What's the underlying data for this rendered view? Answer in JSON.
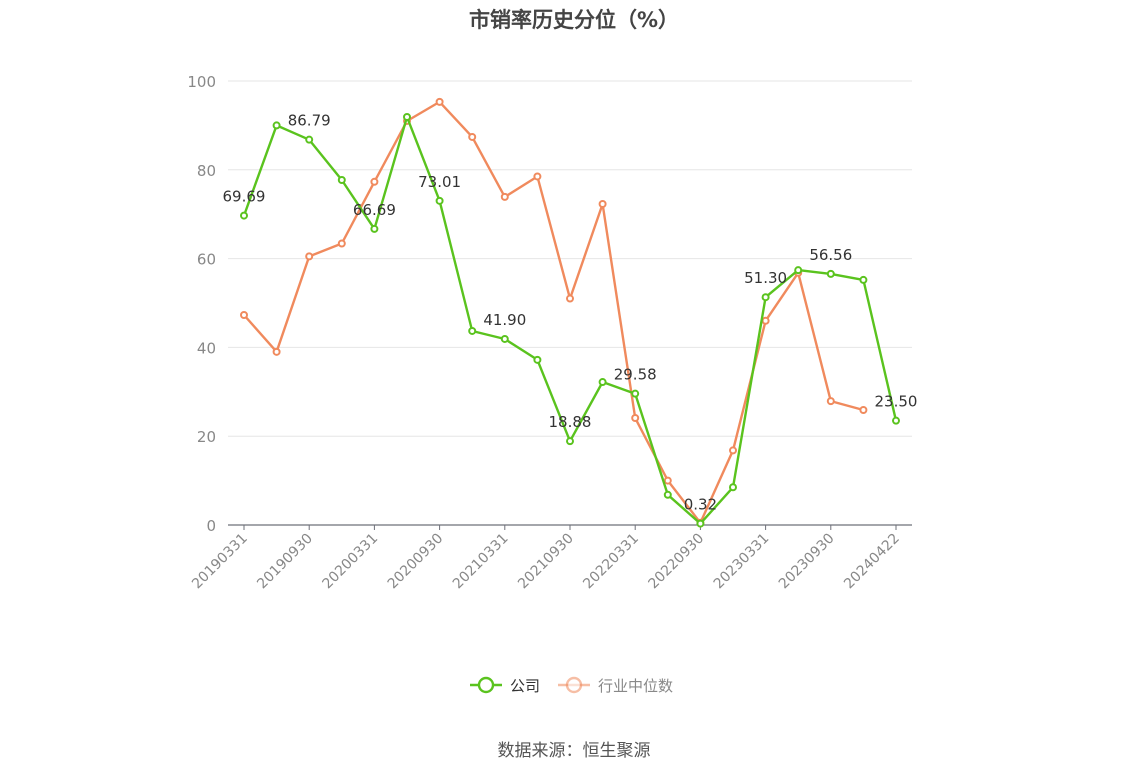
{
  "chart_data": {
    "type": "line",
    "title": "市销率历史分位（%）",
    "ylim": [
      0,
      100
    ],
    "yticks": [
      0,
      20,
      40,
      60,
      80,
      100
    ],
    "x": [
      "20190331",
      "20190630",
      "20190930",
      "20191231",
      "20200331",
      "20200630",
      "20200930",
      "20201231",
      "20210331",
      "20210630",
      "20210930",
      "20211231",
      "20220331",
      "20220630",
      "20220930",
      "20221231",
      "20230331",
      "20230630",
      "20230930",
      "20231231",
      "20240422"
    ],
    "xtick_labels": [
      "20190331",
      "20190930",
      "20200331",
      "20200930",
      "20210331",
      "20210930",
      "20220331",
      "20220930",
      "20230331",
      "20230930",
      "20240422"
    ],
    "grid": true,
    "legend_position": "bottom-center",
    "series": [
      {
        "name": "公司",
        "color": "#5ac31e",
        "values": [
          69.69,
          90.0,
          86.79,
          77.7,
          66.69,
          91.9,
          73.01,
          43.7,
          41.9,
          37.2,
          18.88,
          32.2,
          29.58,
          6.8,
          0.32,
          8.5,
          51.3,
          57.4,
          56.56,
          55.2,
          23.5
        ],
        "labels": [
          "69.69",
          null,
          "86.79",
          null,
          "66.69",
          null,
          "73.01",
          null,
          "41.90",
          null,
          "18.88",
          null,
          "29.58",
          null,
          "0.32",
          null,
          "51.30",
          null,
          "56.56",
          null,
          "23.50"
        ]
      },
      {
        "name": "行业中位数",
        "color": "#f08a5d",
        "values": [
          47.3,
          39.0,
          60.5,
          63.4,
          77.3,
          91.0,
          95.3,
          87.4,
          73.9,
          78.5,
          51.0,
          72.3,
          24.1,
          10.0,
          0.5,
          16.8,
          46.0,
          56.8,
          27.9,
          25.9,
          null
        ]
      }
    ]
  },
  "source": "数据来源：恒生聚源"
}
